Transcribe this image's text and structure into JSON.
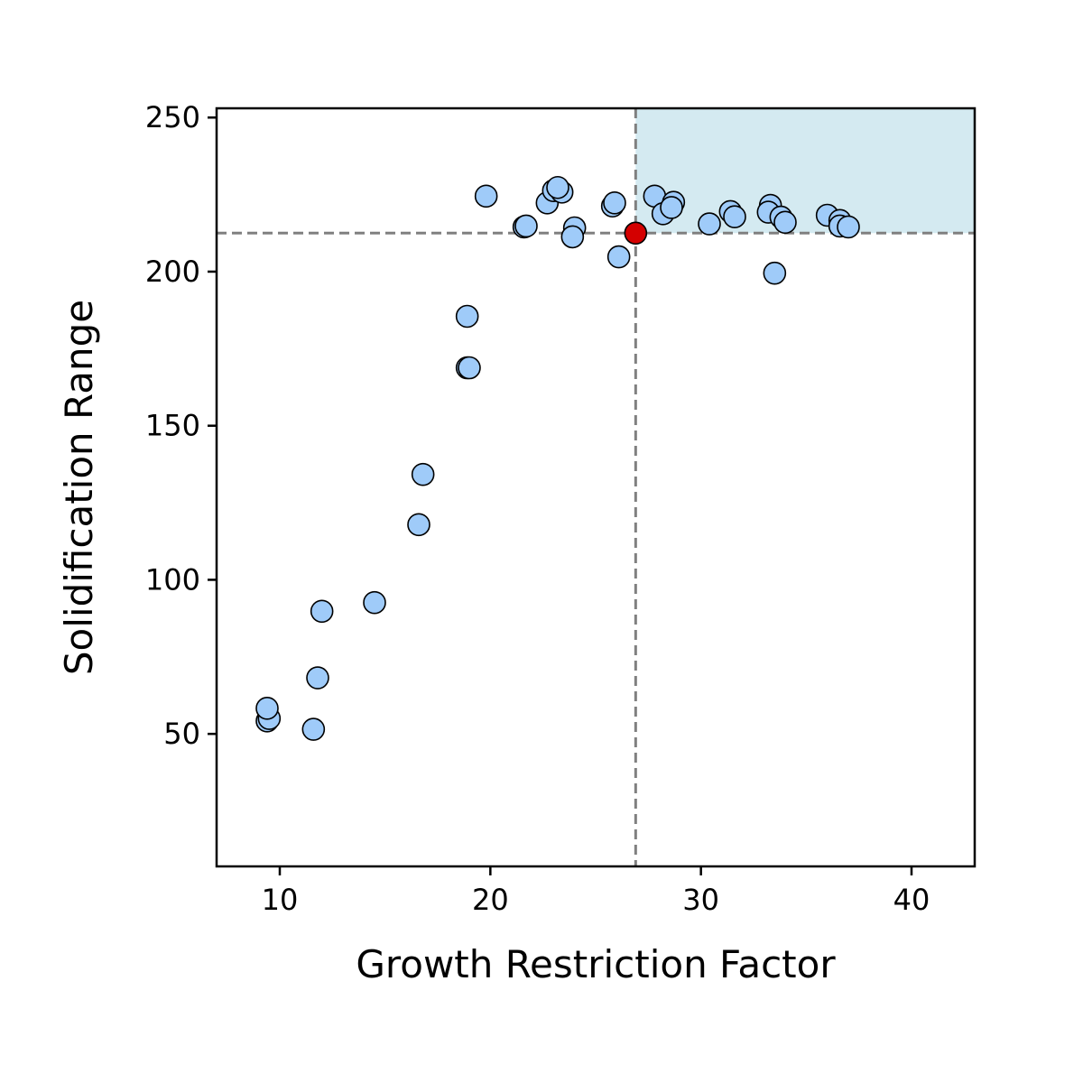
{
  "chart_data": {
    "type": "scatter",
    "title": "",
    "xlabel": "Growth Restriction Factor",
    "ylabel": "Solidification Range",
    "xlim": [
      7,
      43
    ],
    "ylim": [
      7,
      253
    ],
    "x_ticks": [
      10,
      20,
      30,
      40
    ],
    "y_ticks": [
      50,
      100,
      150,
      200,
      250
    ],
    "grid": false,
    "legend": "none",
    "reference_point": {
      "x": 26.9,
      "y": 212.5
    },
    "highlight_region": {
      "x_min": 26.9,
      "x_max": 43,
      "y_min": 212.5,
      "y_max": 253
    },
    "colors": {
      "points": "#9fcbf9",
      "point_edge": "#000000",
      "reference": "#d40000",
      "region": "#d4eaf1",
      "reference_lines": "#808080"
    },
    "points": [
      {
        "x": 9.4,
        "y": 54.2
      },
      {
        "x": 9.5,
        "y": 55.0
      },
      {
        "x": 9.4,
        "y": 58.3
      },
      {
        "x": 11.6,
        "y": 51.5
      },
      {
        "x": 11.8,
        "y": 68.2
      },
      {
        "x": 12.0,
        "y": 89.8
      },
      {
        "x": 14.5,
        "y": 92.6
      },
      {
        "x": 16.6,
        "y": 117.9
      },
      {
        "x": 16.8,
        "y": 134.2
      },
      {
        "x": 18.9,
        "y": 168.8
      },
      {
        "x": 19.0,
        "y": 168.8
      },
      {
        "x": 18.9,
        "y": 185.5
      },
      {
        "x": 19.8,
        "y": 224.5
      },
      {
        "x": 21.6,
        "y": 214.5
      },
      {
        "x": 21.7,
        "y": 214.8
      },
      {
        "x": 22.7,
        "y": 222.3
      },
      {
        "x": 23.0,
        "y": 226.3
      },
      {
        "x": 23.4,
        "y": 225.8
      },
      {
        "x": 23.2,
        "y": 227.3
      },
      {
        "x": 24.0,
        "y": 214.2
      },
      {
        "x": 23.9,
        "y": 211.3
      },
      {
        "x": 25.8,
        "y": 221.3
      },
      {
        "x": 25.9,
        "y": 222.3
      },
      {
        "x": 26.1,
        "y": 204.8
      },
      {
        "x": 27.8,
        "y": 224.5
      },
      {
        "x": 28.2,
        "y": 218.8
      },
      {
        "x": 28.7,
        "y": 222.5
      },
      {
        "x": 28.6,
        "y": 220.8
      },
      {
        "x": 30.4,
        "y": 215.5
      },
      {
        "x": 31.4,
        "y": 219.5
      },
      {
        "x": 31.6,
        "y": 217.8
      },
      {
        "x": 33.3,
        "y": 221.5
      },
      {
        "x": 33.2,
        "y": 219.3
      },
      {
        "x": 33.8,
        "y": 217.7
      },
      {
        "x": 34.0,
        "y": 216.0
      },
      {
        "x": 33.5,
        "y": 199.5
      },
      {
        "x": 36.0,
        "y": 218.3
      },
      {
        "x": 36.6,
        "y": 216.6
      },
      {
        "x": 36.6,
        "y": 214.8
      },
      {
        "x": 37.0,
        "y": 214.5
      }
    ]
  }
}
